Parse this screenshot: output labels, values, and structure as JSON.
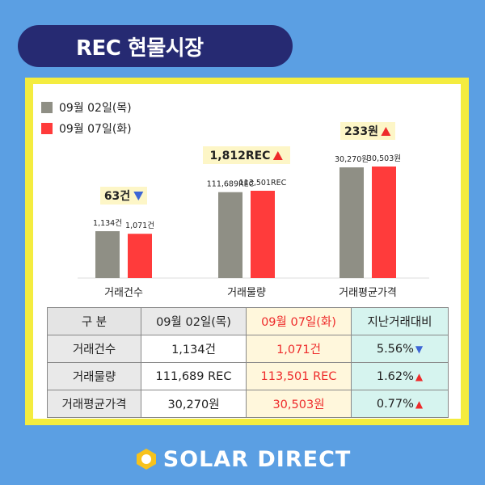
{
  "header": {
    "title": "REC 현물시장"
  },
  "legend": [
    {
      "label": "09월 02일(목)",
      "color": "#8f8f85"
    },
    {
      "label": "09월 07일(화)",
      "color": "#ff3b3b"
    }
  ],
  "chart_data": {
    "type": "bar",
    "categories": [
      "거래건수",
      "거래물량",
      "거래평균가격"
    ],
    "series": [
      {
        "name": "09월 02일(목)",
        "values": [
          1134,
          111689,
          30270
        ],
        "labels": [
          "1,134건",
          "111,689REC",
          "30,270원"
        ],
        "color": "#8f8f85"
      },
      {
        "name": "09월 07일(화)",
        "values": [
          1071,
          113501,
          30503
        ],
        "labels": [
          "1,071건",
          "113,501REC",
          "30,503원"
        ],
        "color": "#ff3b3b"
      }
    ],
    "changes": [
      {
        "label": "63건",
        "direction": "down"
      },
      {
        "label": "1,812REC",
        "direction": "up"
      },
      {
        "label": "233원",
        "direction": "up"
      }
    ]
  },
  "table": {
    "headers": [
      "구 분",
      "09월 02일(목)",
      "09월 07일(화)",
      "지난거래대비"
    ],
    "rows": [
      {
        "name": "거래건수",
        "prev": "1,134건",
        "curr": "1,071건",
        "change": "5.56%",
        "dir": "down"
      },
      {
        "name": "거래물량",
        "prev": "111,689 REC",
        "curr": "113,501 REC",
        "change": "1.62%",
        "dir": "up"
      },
      {
        "name": "거래평균가격",
        "prev": "30,270원",
        "curr": "30,503원",
        "change": "0.77%",
        "dir": "up"
      }
    ]
  },
  "footer": {
    "logo_text": "SOLAR DIRECT"
  },
  "colors": {
    "background": "#5b9fe3",
    "frame": "#f4ec3f",
    "pill": "#262a72",
    "up": "#ee2b2b",
    "down": "#3d66d6"
  }
}
